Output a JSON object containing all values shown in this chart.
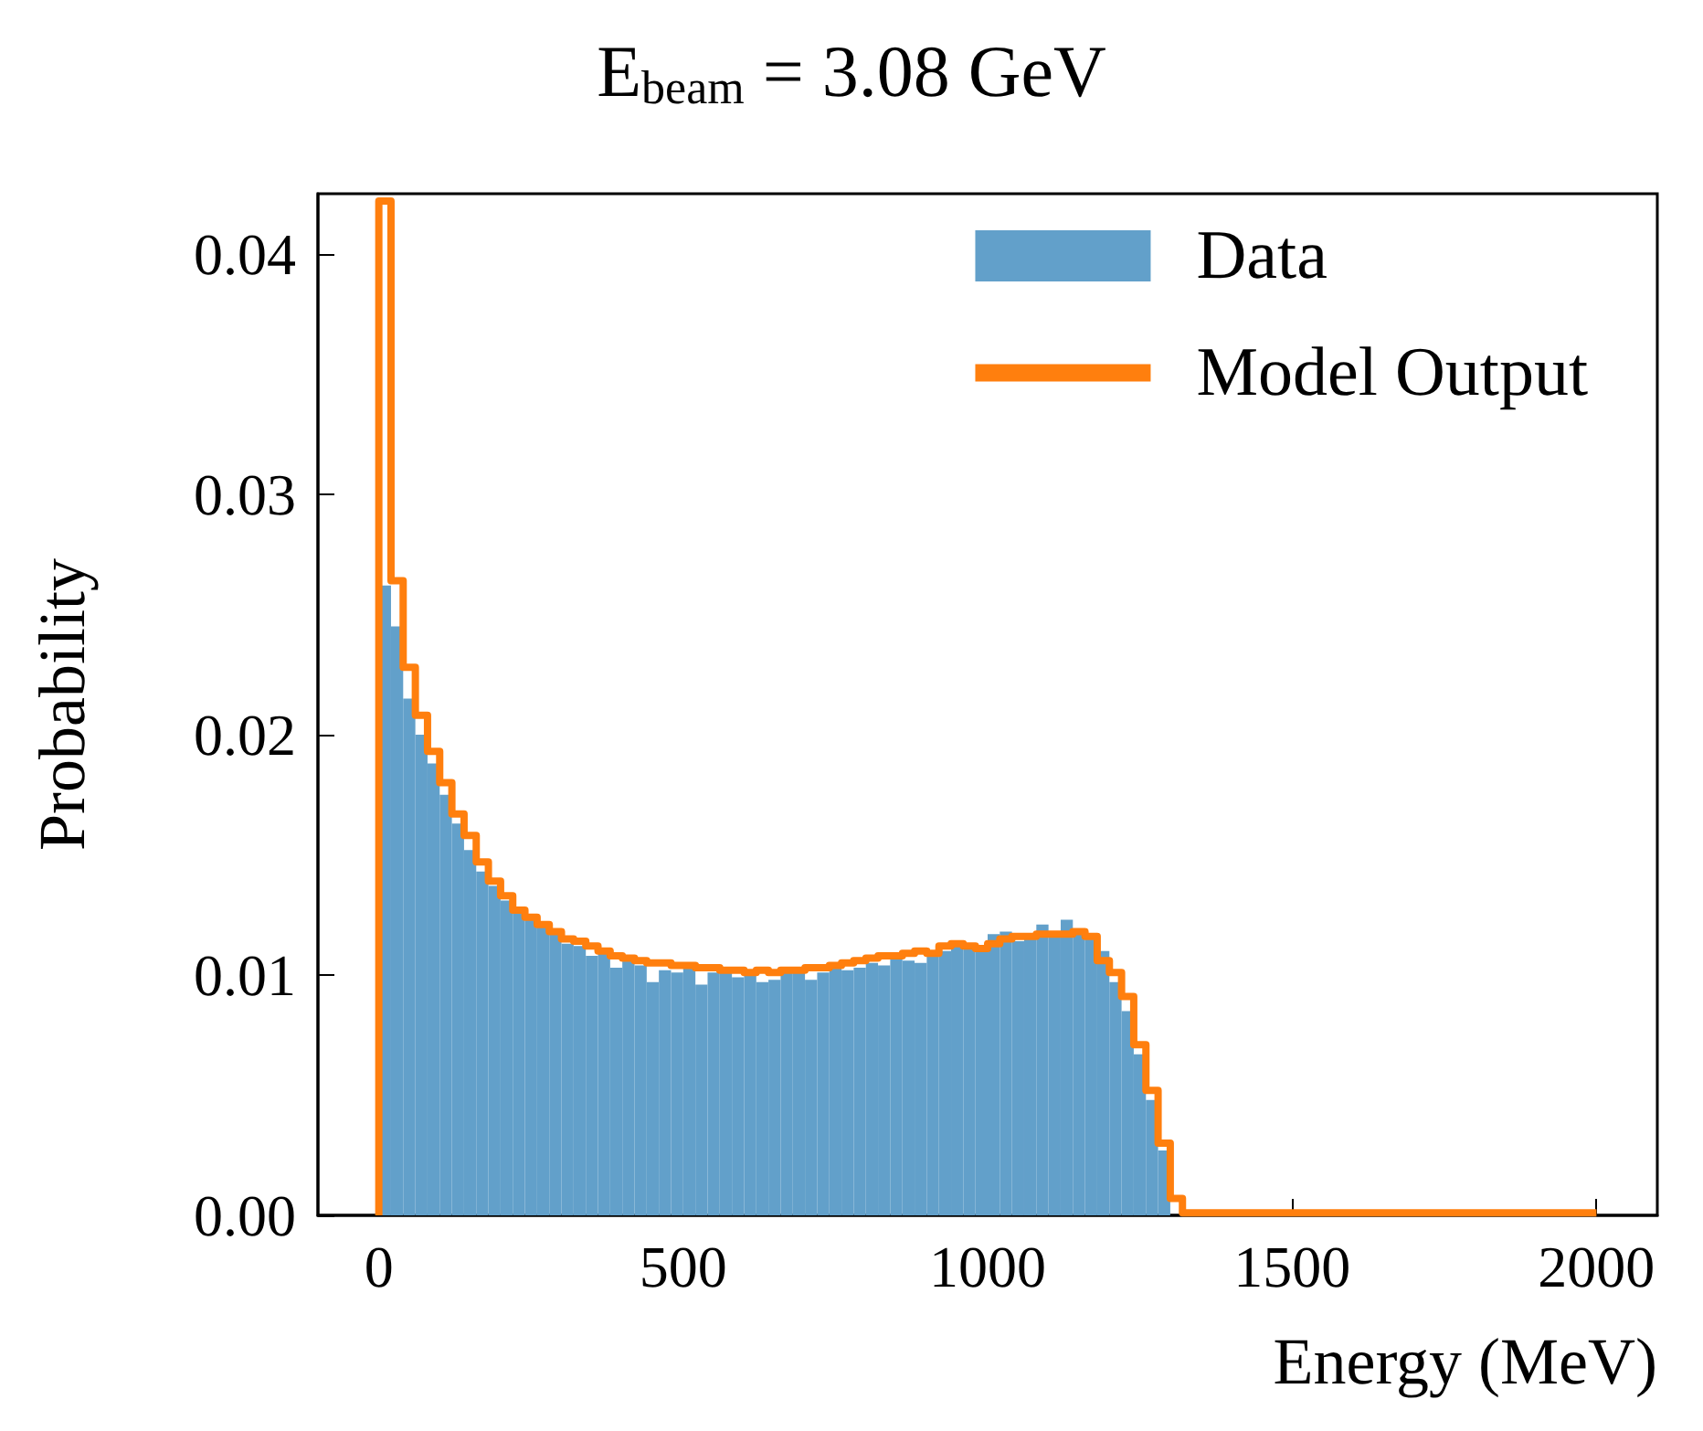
{
  "chart_data": {
    "type": "histogram",
    "title": "E$_{beam}$ = 3.08 GeV",
    "xlabel": "Energy (MeV)",
    "ylabel": "Probability",
    "xlim": [
      -100,
      2100
    ],
    "xticks": [
      0,
      500,
      1000,
      1500,
      2000
    ],
    "ylim": [
      0,
      0.0425
    ],
    "yticks": [
      {
        "value": 0,
        "label": "0.00"
      },
      {
        "value": 0.01,
        "label": "0.01"
      },
      {
        "value": 0.02,
        "label": "0.02"
      },
      {
        "value": 0.03,
        "label": "0.03"
      },
      {
        "value": 0.04,
        "label": "0.04"
      }
    ],
    "legend": "top right",
    "grid": false,
    "series": [
      {
        "name": "Data",
        "color": "#62a0ca",
        "bins": [
          0,
          20,
          40,
          60,
          80,
          100,
          120,
          140,
          160,
          180,
          200,
          220,
          240,
          260,
          280,
          300,
          320,
          340,
          360,
          380,
          400,
          420,
          440,
          460,
          480,
          500,
          520,
          540,
          560,
          580,
          600,
          620,
          640,
          660,
          680,
          700,
          720,
          740,
          760,
          780,
          800,
          820,
          840,
          860,
          880,
          900,
          920,
          940,
          960,
          980,
          1000,
          1020,
          1040,
          1060,
          1080,
          1100,
          1120,
          1140,
          1160,
          1180,
          1200,
          1220,
          1240,
          1260,
          1280,
          1300
        ],
        "values": [
          0.0262,
          0.0245,
          0.0215,
          0.02,
          0.0188,
          0.0175,
          0.0163,
          0.0152,
          0.0143,
          0.0137,
          0.0131,
          0.0126,
          0.0123,
          0.012,
          0.0119,
          0.0113,
          0.0112,
          0.0108,
          0.011,
          0.0103,
          0.0106,
          0.0104,
          0.0097,
          0.0102,
          0.0101,
          0.0103,
          0.0096,
          0.0101,
          0.0103,
          0.0099,
          0.0101,
          0.0097,
          0.0098,
          0.0101,
          0.0102,
          0.0098,
          0.0101,
          0.0104,
          0.0102,
          0.0103,
          0.0105,
          0.0104,
          0.0107,
          0.0106,
          0.0105,
          0.0108,
          0.011,
          0.0114,
          0.0112,
          0.011,
          0.0117,
          0.0118,
          0.0114,
          0.0116,
          0.0121,
          0.0118,
          0.0123,
          0.0119,
          0.0116,
          0.011,
          0.0097,
          0.0085,
          0.0067,
          0.0048,
          0.0027
        ]
      },
      {
        "name": "Model Output",
        "type": "step",
        "color": "#ff7f0e",
        "x": [
          0,
          0,
          20,
          40,
          60,
          80,
          100,
          120,
          140,
          160,
          180,
          200,
          220,
          240,
          260,
          280,
          300,
          320,
          340,
          360,
          380,
          400,
          420,
          440,
          460,
          480,
          500,
          520,
          540,
          560,
          580,
          600,
          620,
          640,
          660,
          680,
          700,
          720,
          740,
          760,
          780,
          800,
          820,
          840,
          860,
          880,
          900,
          920,
          940,
          960,
          980,
          1000,
          1020,
          1040,
          1060,
          1080,
          1100,
          1120,
          1140,
          1160,
          1180,
          1200,
          1220,
          1240,
          1260,
          1280,
          1300,
          1320,
          2000
        ],
        "values": [
          0,
          0.0422,
          0.0264,
          0.0228,
          0.0208,
          0.0193,
          0.018,
          0.0167,
          0.0158,
          0.0147,
          0.0139,
          0.0133,
          0.0127,
          0.0124,
          0.0121,
          0.0118,
          0.0115,
          0.0114,
          0.0112,
          0.011,
          0.0108,
          0.0107,
          0.0106,
          0.0105,
          0.0105,
          0.0104,
          0.0104,
          0.0103,
          0.0103,
          0.0102,
          0.0102,
          0.0101,
          0.0102,
          0.0101,
          0.0102,
          0.0102,
          0.0103,
          0.0103,
          0.0104,
          0.0105,
          0.0106,
          0.0107,
          0.0108,
          0.0108,
          0.0109,
          0.011,
          0.0109,
          0.0112,
          0.0113,
          0.0112,
          0.0111,
          0.0113,
          0.0115,
          0.0116,
          0.0116,
          0.0117,
          0.0117,
          0.0117,
          0.0118,
          0.0116,
          0.0106,
          0.0101,
          0.0091,
          0.0071,
          0.0052,
          0.003,
          0.0007,
          0.0001,
          0.0001
        ]
      }
    ]
  }
}
